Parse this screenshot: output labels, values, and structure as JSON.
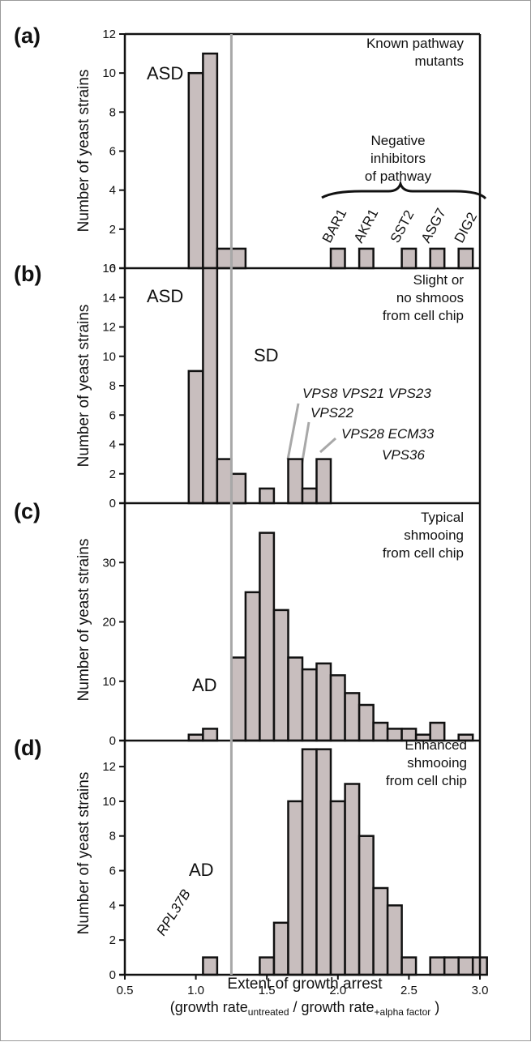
{
  "colors": {
    "bar_fill": "#c8bebe",
    "bar_stroke": "#111111",
    "threshold_line": "#a8a8a8",
    "axis": "#111111"
  },
  "x_axis": {
    "ticks": [
      0.5,
      1.0,
      1.5,
      2.0,
      2.5,
      3.0
    ],
    "tick_labels": [
      "0.5",
      "1.0",
      "1.5",
      "2.0",
      "2.5",
      "3.0"
    ],
    "xlabel": "Extent of growth arrest",
    "xlabel2_prefix": "(growth rate",
    "xlabel2_sub1": "untreated",
    "xlabel2_mid": " / growth rate",
    "xlabel2_sub2": "+alpha factor",
    "xlabel2_suffix": " )"
  },
  "ylabel": "Number of yeast strains",
  "threshold_x": 1.25,
  "bin_width": 0.1,
  "chart_data": [
    {
      "type": "bar",
      "panel": "(a)",
      "ylim": [
        0,
        12
      ],
      "yticks": [
        0,
        2,
        4,
        6,
        8,
        10,
        12
      ],
      "x": [
        1.0,
        1.1,
        1.2,
        1.3,
        2.0,
        2.2,
        2.5,
        2.7,
        2.9
      ],
      "values": [
        10,
        11,
        1,
        1,
        1,
        1,
        1,
        1,
        1
      ],
      "region": "ASD",
      "note_lines": [
        "Known pathway",
        "mutants"
      ],
      "annotation_lines": [
        "Negative",
        "inhibitors",
        "of pathway"
      ],
      "genes": [
        "BAR1",
        "AKR1",
        "SST2",
        "ASG7",
        "DIG2"
      ]
    },
    {
      "type": "bar",
      "panel": "(b)",
      "ylim": [
        0,
        16
      ],
      "yticks": [
        0,
        2,
        4,
        6,
        8,
        10,
        12,
        14,
        16
      ],
      "x": [
        1.0,
        1.1,
        1.2,
        1.3,
        1.5,
        1.7,
        1.8,
        1.9
      ],
      "values": [
        9,
        16,
        3,
        2,
        1,
        3,
        1,
        3
      ],
      "regions": [
        "ASD",
        "SD"
      ],
      "note_lines": [
        "Slight or",
        "no shmoos",
        "from cell chip"
      ],
      "gene_labels": [
        "VPS8 VPS21 VPS23",
        "VPS22",
        "VPS28  ECM33",
        "VPS36"
      ]
    },
    {
      "type": "bar",
      "panel": "(c)",
      "ylim": [
        0,
        40
      ],
      "yticks": [
        0,
        10,
        20,
        30
      ],
      "x": [
        1.0,
        1.1,
        1.3,
        1.4,
        1.5,
        1.6,
        1.7,
        1.8,
        1.9,
        2.0,
        2.1,
        2.2,
        2.3,
        2.4,
        2.5,
        2.6,
        2.7,
        2.9
      ],
      "values": [
        1,
        2,
        14,
        25,
        35,
        22,
        14,
        12,
        13,
        11,
        8,
        6,
        3,
        2,
        2,
        1,
        3,
        1
      ],
      "region": "AD",
      "note_lines": [
        "Typical",
        "shmooing",
        "from cell chip"
      ]
    },
    {
      "type": "bar",
      "panel": "(d)",
      "ylim": [
        0,
        13.5
      ],
      "yticks": [
        0,
        2,
        4,
        6,
        8,
        10,
        12
      ],
      "x": [
        1.1,
        1.5,
        1.6,
        1.7,
        1.8,
        1.9,
        2.0,
        2.1,
        2.2,
        2.3,
        2.4,
        2.5,
        2.7,
        2.8,
        2.9,
        3.0
      ],
      "values": [
        1,
        1,
        3,
        10,
        13,
        13,
        10,
        11,
        8,
        5,
        4,
        1,
        1,
        1,
        1,
        1
      ],
      "region": "AD",
      "note_lines": [
        "Enhanced",
        "shmooing",
        "from cell chip"
      ],
      "gene_label": "RPL37B"
    }
  ]
}
